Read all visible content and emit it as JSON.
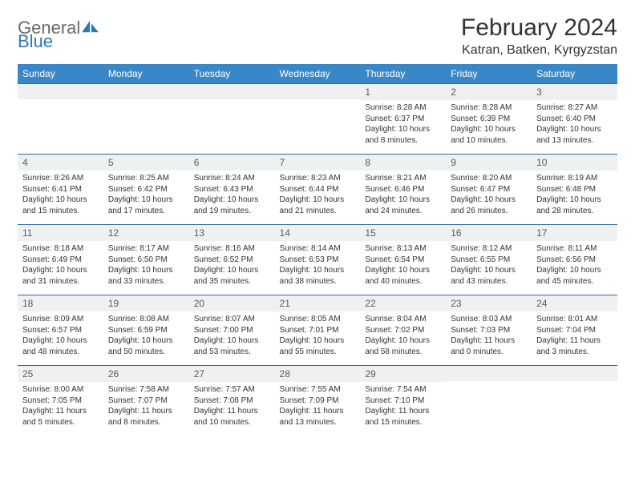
{
  "colors": {
    "header_bg": "#3a87c7",
    "header_text": "#ffffff",
    "row_border": "#2f6a9e",
    "daynum_bg": "#eef0f2",
    "daynum_text": "#5a5a5a",
    "body_text": "#333333",
    "logo_gray": "#6a6a6a",
    "logo_blue": "#2a7ab9",
    "page_bg": "#ffffff"
  },
  "typography": {
    "title_size": 30,
    "location_size": 16,
    "weekday_size": 12,
    "daynum_size": 12,
    "cell_size": 10,
    "font_family": "Arial"
  },
  "logo": {
    "text_gray": "General",
    "text_blue": "Blue"
  },
  "title": "February 2024",
  "location": "Katran, Batken, Kyrgyzstan",
  "weekdays": [
    "Sunday",
    "Monday",
    "Tuesday",
    "Wednesday",
    "Thursday",
    "Friday",
    "Saturday"
  ],
  "first_weekday_index": 4,
  "days": [
    {
      "n": "1",
      "sunrise": "8:28 AM",
      "sunset": "6:37 PM",
      "daylight": "10 hours and 8 minutes."
    },
    {
      "n": "2",
      "sunrise": "8:28 AM",
      "sunset": "6:39 PM",
      "daylight": "10 hours and 10 minutes."
    },
    {
      "n": "3",
      "sunrise": "8:27 AM",
      "sunset": "6:40 PM",
      "daylight": "10 hours and 13 minutes."
    },
    {
      "n": "4",
      "sunrise": "8:26 AM",
      "sunset": "6:41 PM",
      "daylight": "10 hours and 15 minutes."
    },
    {
      "n": "5",
      "sunrise": "8:25 AM",
      "sunset": "6:42 PM",
      "daylight": "10 hours and 17 minutes."
    },
    {
      "n": "6",
      "sunrise": "8:24 AM",
      "sunset": "6:43 PM",
      "daylight": "10 hours and 19 minutes."
    },
    {
      "n": "7",
      "sunrise": "8:23 AM",
      "sunset": "6:44 PM",
      "daylight": "10 hours and 21 minutes."
    },
    {
      "n": "8",
      "sunrise": "8:21 AM",
      "sunset": "6:46 PM",
      "daylight": "10 hours and 24 minutes."
    },
    {
      "n": "9",
      "sunrise": "8:20 AM",
      "sunset": "6:47 PM",
      "daylight": "10 hours and 26 minutes."
    },
    {
      "n": "10",
      "sunrise": "8:19 AM",
      "sunset": "6:48 PM",
      "daylight": "10 hours and 28 minutes."
    },
    {
      "n": "11",
      "sunrise": "8:18 AM",
      "sunset": "6:49 PM",
      "daylight": "10 hours and 31 minutes."
    },
    {
      "n": "12",
      "sunrise": "8:17 AM",
      "sunset": "6:50 PM",
      "daylight": "10 hours and 33 minutes."
    },
    {
      "n": "13",
      "sunrise": "8:16 AM",
      "sunset": "6:52 PM",
      "daylight": "10 hours and 35 minutes."
    },
    {
      "n": "14",
      "sunrise": "8:14 AM",
      "sunset": "6:53 PM",
      "daylight": "10 hours and 38 minutes."
    },
    {
      "n": "15",
      "sunrise": "8:13 AM",
      "sunset": "6:54 PM",
      "daylight": "10 hours and 40 minutes."
    },
    {
      "n": "16",
      "sunrise": "8:12 AM",
      "sunset": "6:55 PM",
      "daylight": "10 hours and 43 minutes."
    },
    {
      "n": "17",
      "sunrise": "8:11 AM",
      "sunset": "6:56 PM",
      "daylight": "10 hours and 45 minutes."
    },
    {
      "n": "18",
      "sunrise": "8:09 AM",
      "sunset": "6:57 PM",
      "daylight": "10 hours and 48 minutes."
    },
    {
      "n": "19",
      "sunrise": "8:08 AM",
      "sunset": "6:59 PM",
      "daylight": "10 hours and 50 minutes."
    },
    {
      "n": "20",
      "sunrise": "8:07 AM",
      "sunset": "7:00 PM",
      "daylight": "10 hours and 53 minutes."
    },
    {
      "n": "21",
      "sunrise": "8:05 AM",
      "sunset": "7:01 PM",
      "daylight": "10 hours and 55 minutes."
    },
    {
      "n": "22",
      "sunrise": "8:04 AM",
      "sunset": "7:02 PM",
      "daylight": "10 hours and 58 minutes."
    },
    {
      "n": "23",
      "sunrise": "8:03 AM",
      "sunset": "7:03 PM",
      "daylight": "11 hours and 0 minutes."
    },
    {
      "n": "24",
      "sunrise": "8:01 AM",
      "sunset": "7:04 PM",
      "daylight": "11 hours and 3 minutes."
    },
    {
      "n": "25",
      "sunrise": "8:00 AM",
      "sunset": "7:05 PM",
      "daylight": "11 hours and 5 minutes."
    },
    {
      "n": "26",
      "sunrise": "7:58 AM",
      "sunset": "7:07 PM",
      "daylight": "11 hours and 8 minutes."
    },
    {
      "n": "27",
      "sunrise": "7:57 AM",
      "sunset": "7:08 PM",
      "daylight": "11 hours and 10 minutes."
    },
    {
      "n": "28",
      "sunrise": "7:55 AM",
      "sunset": "7:09 PM",
      "daylight": "11 hours and 13 minutes."
    },
    {
      "n": "29",
      "sunrise": "7:54 AM",
      "sunset": "7:10 PM",
      "daylight": "11 hours and 15 minutes."
    }
  ],
  "labels": {
    "sunrise": "Sunrise:",
    "sunset": "Sunset:",
    "daylight": "Daylight:"
  }
}
